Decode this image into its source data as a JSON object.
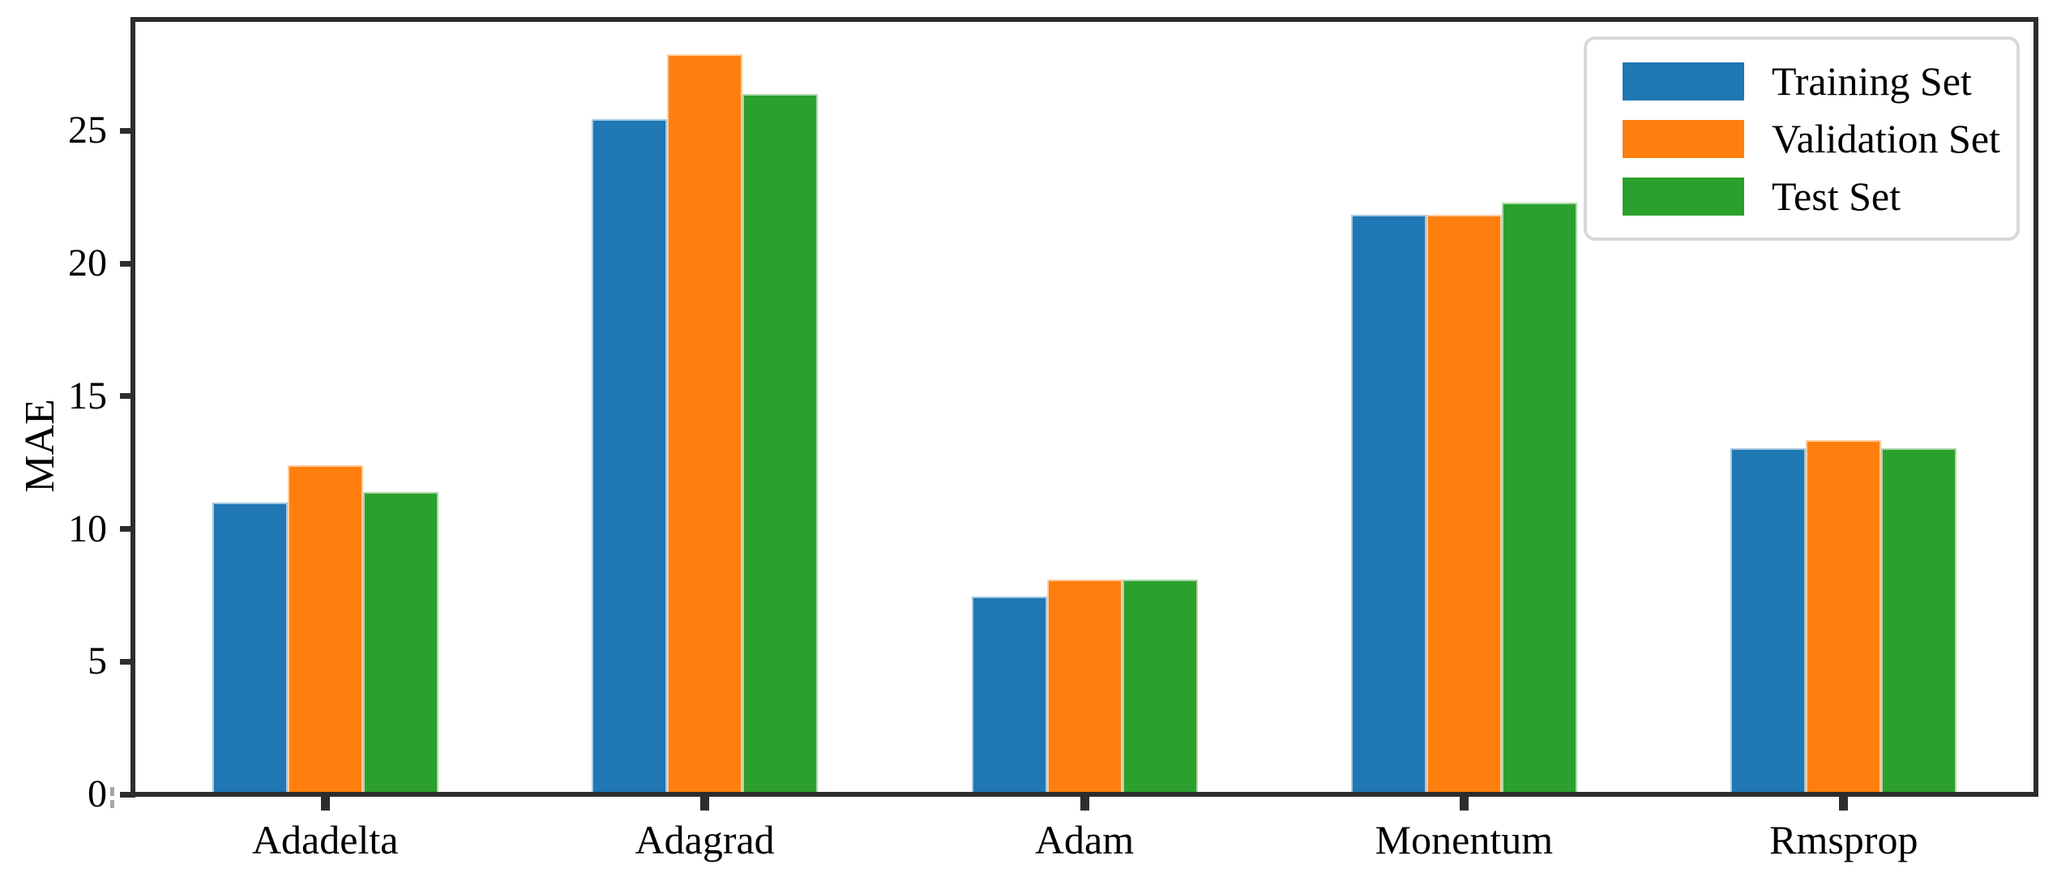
{
  "chart_data": {
    "type": "bar",
    "title": "",
    "xlabel": "",
    "ylabel": "MAE",
    "categories": [
      "Adadelta",
      "Adagrad",
      "Adam",
      "Monentum",
      "Rmsprop"
    ],
    "series": [
      {
        "name": "Training Set",
        "color": "#1f77b4",
        "values": [
          10.9,
          25.35,
          7.35,
          21.75,
          12.95
        ]
      },
      {
        "name": "Validation Set",
        "color": "#ff7f0e",
        "values": [
          12.3,
          27.8,
          8.0,
          21.75,
          13.25
        ]
      },
      {
        "name": "Test Set",
        "color": "#2ca02c",
        "values": [
          11.3,
          26.3,
          8.0,
          22.2,
          12.95
        ]
      }
    ],
    "yticks": [
      0,
      5,
      10,
      15,
      20,
      25
    ],
    "ylim": [
      0,
      29.1
    ],
    "grid": false,
    "legend_position": "upper right",
    "axis_color": "#2d2d2d",
    "legend_border_color": "#d8d8d8"
  }
}
